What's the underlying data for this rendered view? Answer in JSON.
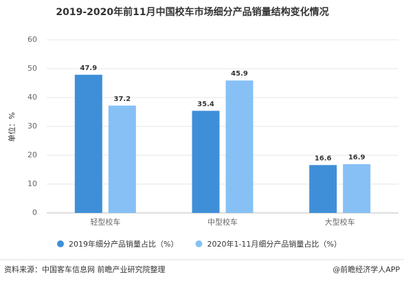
{
  "chart_data": {
    "type": "bar",
    "title": "2019-2020年前11月中国校车市场细分产品销量结构变化情况",
    "y_label": "单位：%",
    "categories": [
      "轻型校车",
      "中型校车",
      "大型校车"
    ],
    "series": [
      {
        "name": "2019年细分产品销量占比（%）",
        "color": "#3f8fd8",
        "values": [
          47.9,
          35.4,
          16.6
        ]
      },
      {
        "name": "2020年1-11月细分产品销量占比（%）",
        "color": "#86c0f5",
        "values": [
          37.2,
          45.9,
          16.9
        ]
      }
    ],
    "ylim": [
      0,
      60
    ],
    "yticks": [
      0,
      10,
      20,
      30,
      40,
      50,
      60
    ],
    "grid": true,
    "legend": "bottom",
    "source": "资料来源：中国客车信息网 前瞻产业研究院整理",
    "credit": "@前瞻经济学人APP"
  }
}
